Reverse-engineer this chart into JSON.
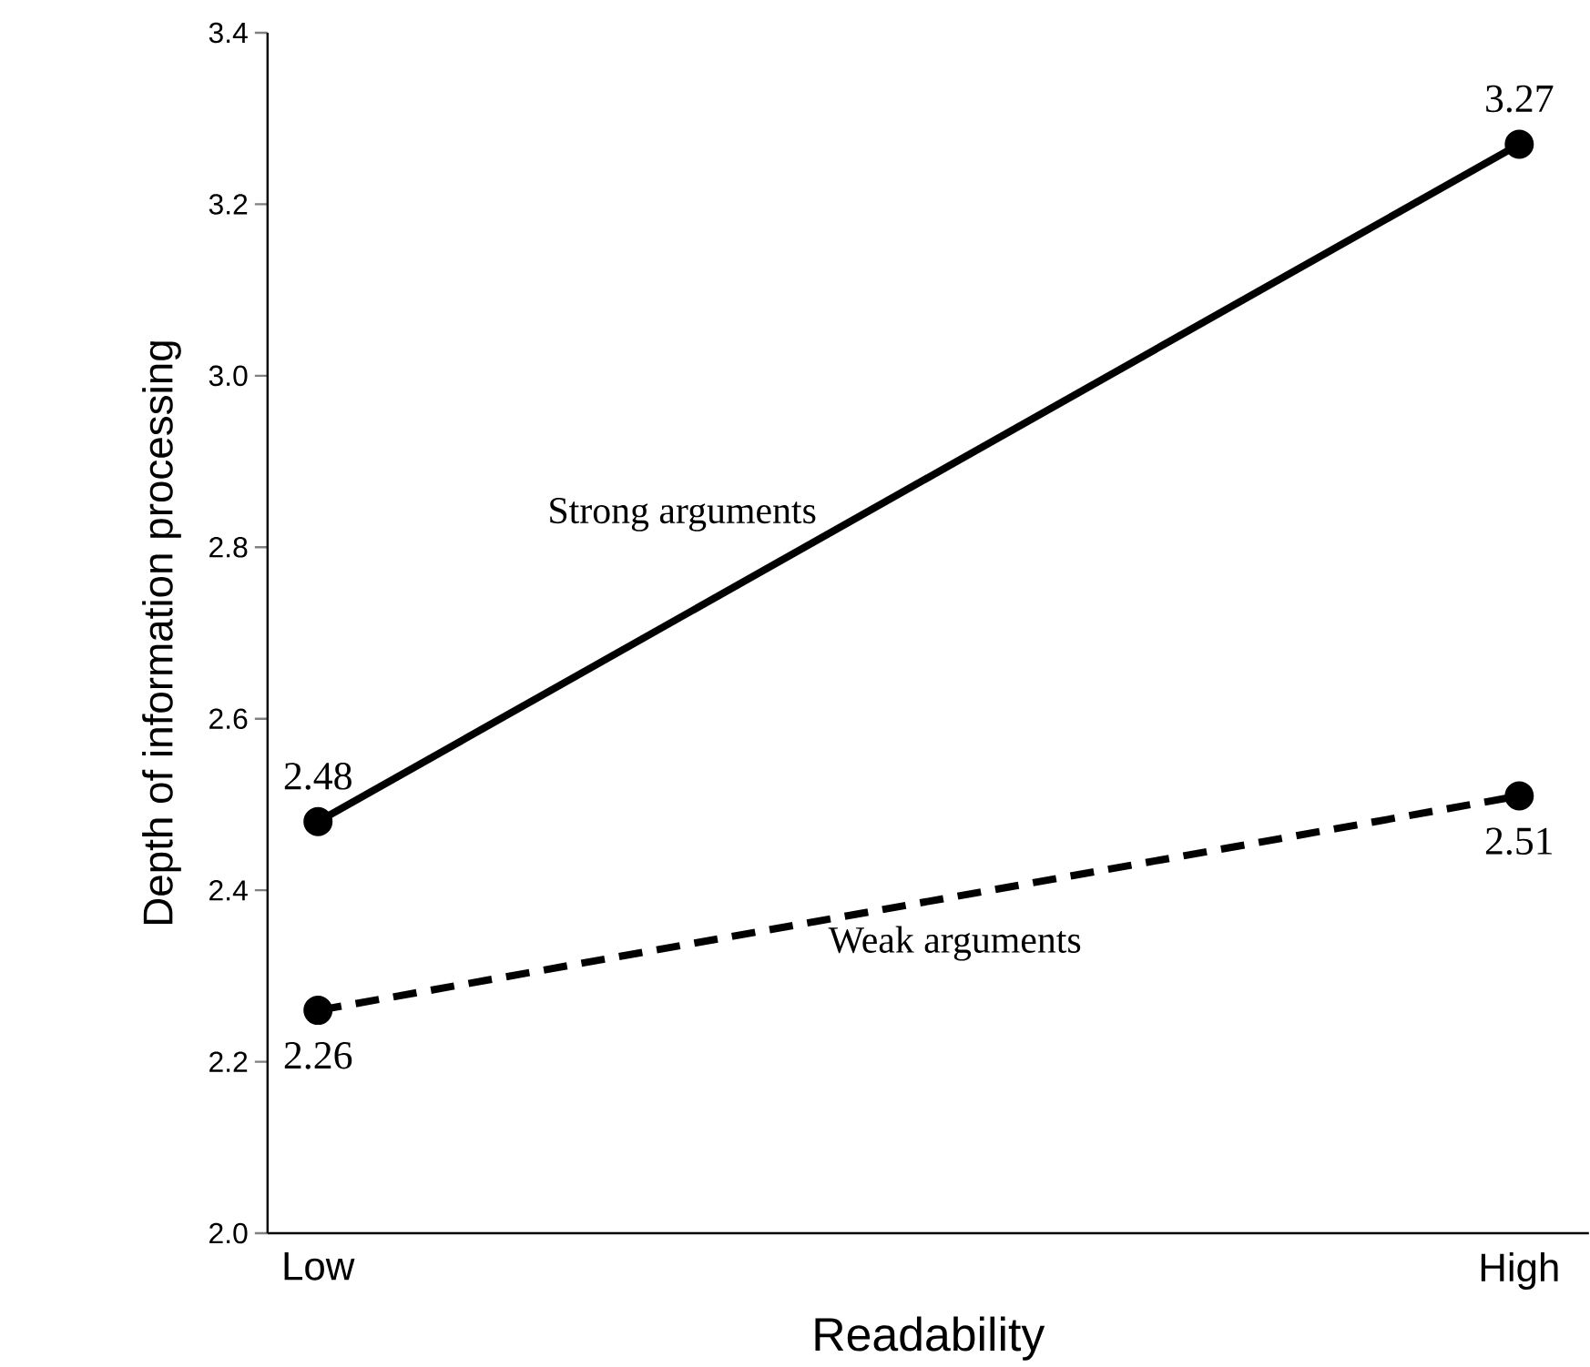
{
  "chart_data": {
    "type": "line",
    "xlabel": "Readability",
    "ylabel": "Depth of information processing",
    "categories": [
      "Low",
      "High"
    ],
    "series": [
      {
        "name": "Strong arguments",
        "color": "#000000",
        "values": [
          2.48,
          3.27
        ],
        "line_style": "solid"
      },
      {
        "name": "Weak arguments",
        "color": "#000000",
        "values": [
          2.26,
          2.51
        ],
        "line_style": "dashed"
      }
    ],
    "ylim": [
      2.0,
      3.4
    ],
    "yticks": [
      {
        "value": 2.0,
        "label": "2.0"
      },
      {
        "value": 2.2,
        "label": "2.2"
      },
      {
        "value": 2.4,
        "label": "2.4"
      },
      {
        "value": 2.6,
        "label": "2.6"
      },
      {
        "value": 2.8,
        "label": "2.8"
      },
      {
        "value": 3.0,
        "label": "3.0"
      },
      {
        "value": 3.2,
        "label": "3.2"
      },
      {
        "value": 3.4,
        "label": "3.4"
      }
    ],
    "marker": "circle",
    "data_labels": true,
    "grid": false,
    "legend": false
  }
}
